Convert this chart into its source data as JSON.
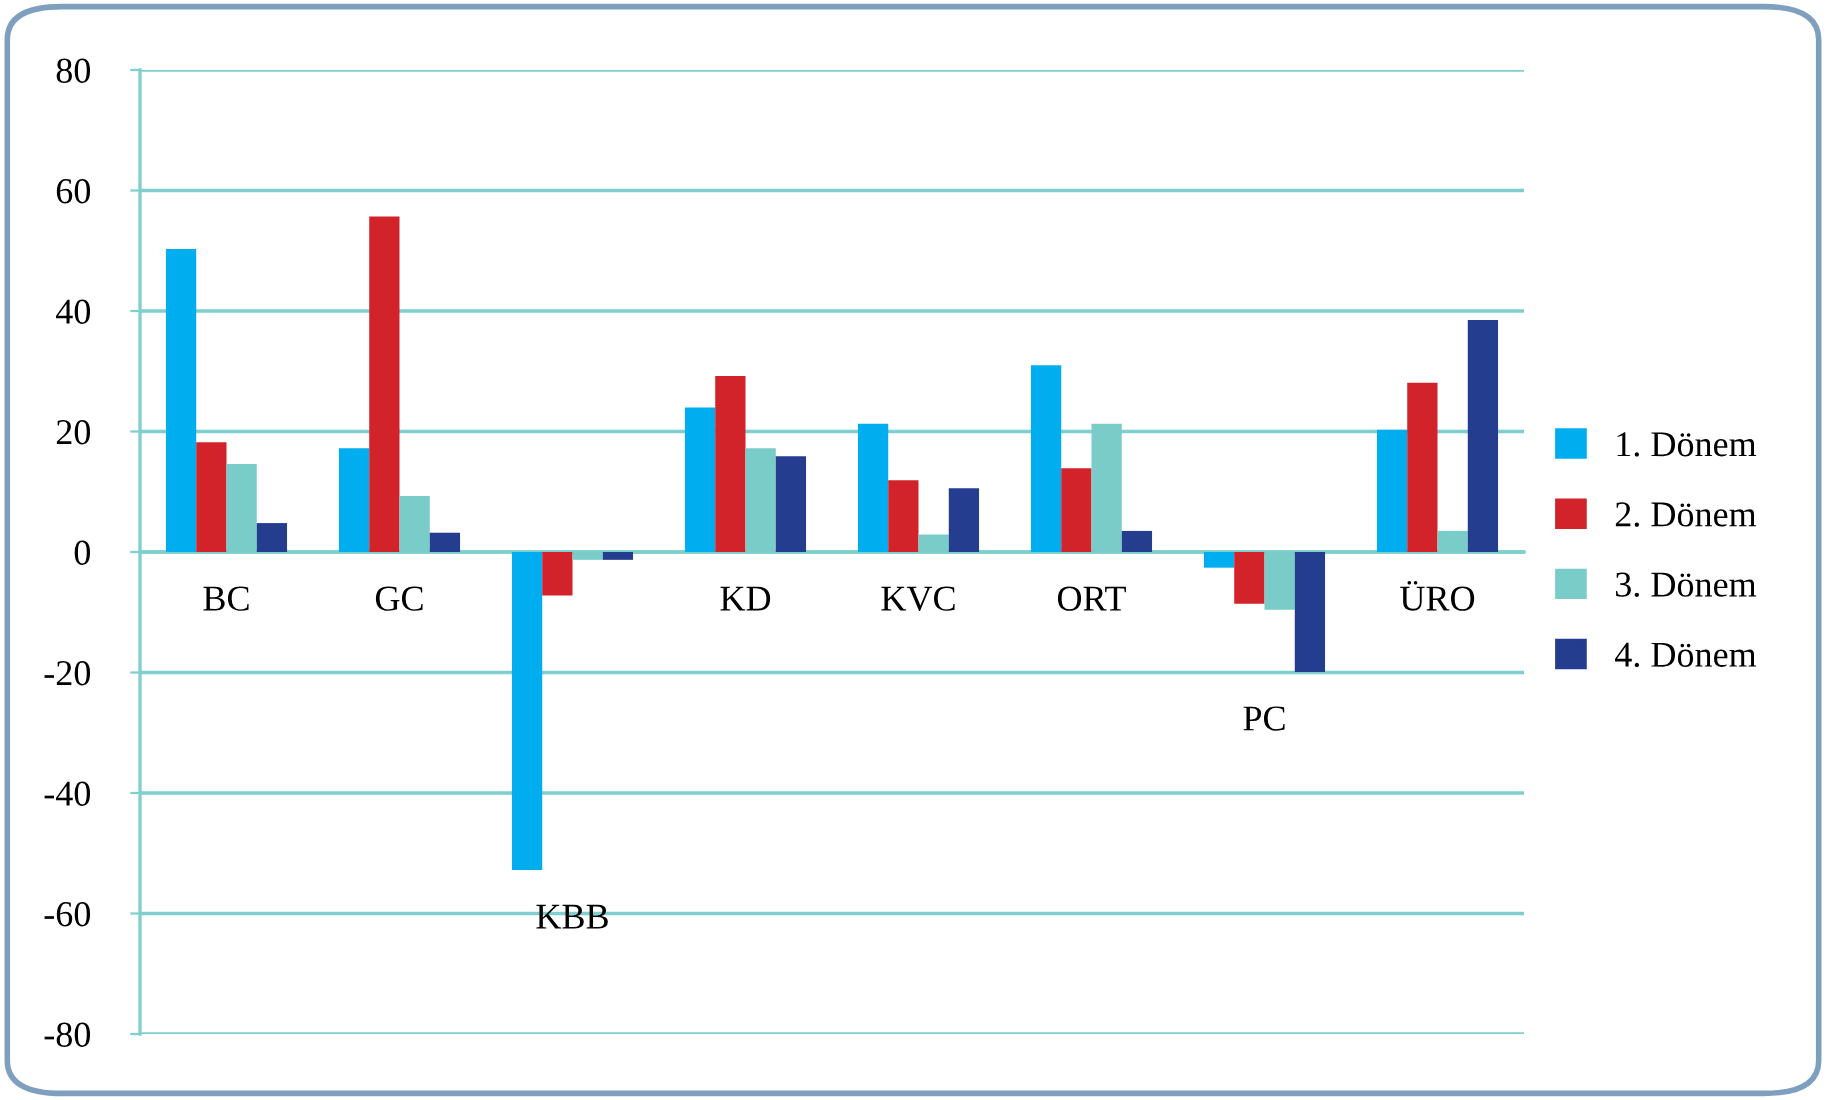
{
  "chart_data": {
    "type": "bar",
    "categories": [
      "BC",
      "GC",
      "KBB",
      "KD",
      "KVC",
      "ORT",
      "PC",
      "ÜRO"
    ],
    "series": [
      {
        "name": "1. Dönem",
        "color": "#00aeef",
        "values": [
          50.3,
          17.2,
          -52.8,
          24.0,
          21.3,
          31.0,
          -2.6,
          20.3
        ]
      },
      {
        "name": "2. Dönem",
        "color": "#d2232a",
        "values": [
          18.2,
          55.7,
          -7.2,
          29.2,
          11.9,
          13.9,
          -8.6,
          28.1
        ]
      },
      {
        "name": "3. Dönem",
        "color": "#7accc8",
        "values": [
          14.6,
          9.3,
          -1.3,
          17.2,
          2.9,
          21.3,
          -9.6,
          3.5
        ]
      },
      {
        "name": "4. Dönem",
        "color": "#253d8e",
        "values": [
          4.8,
          3.2,
          -1.3,
          15.9,
          10.6,
          3.5,
          -19.9,
          38.5
        ]
      }
    ],
    "ylim": [
      -80,
      80
    ],
    "yticks": [
      -80,
      -60,
      -40,
      -20,
      0,
      20,
      40,
      60,
      80
    ],
    "grid": "y",
    "legend": "right"
  }
}
